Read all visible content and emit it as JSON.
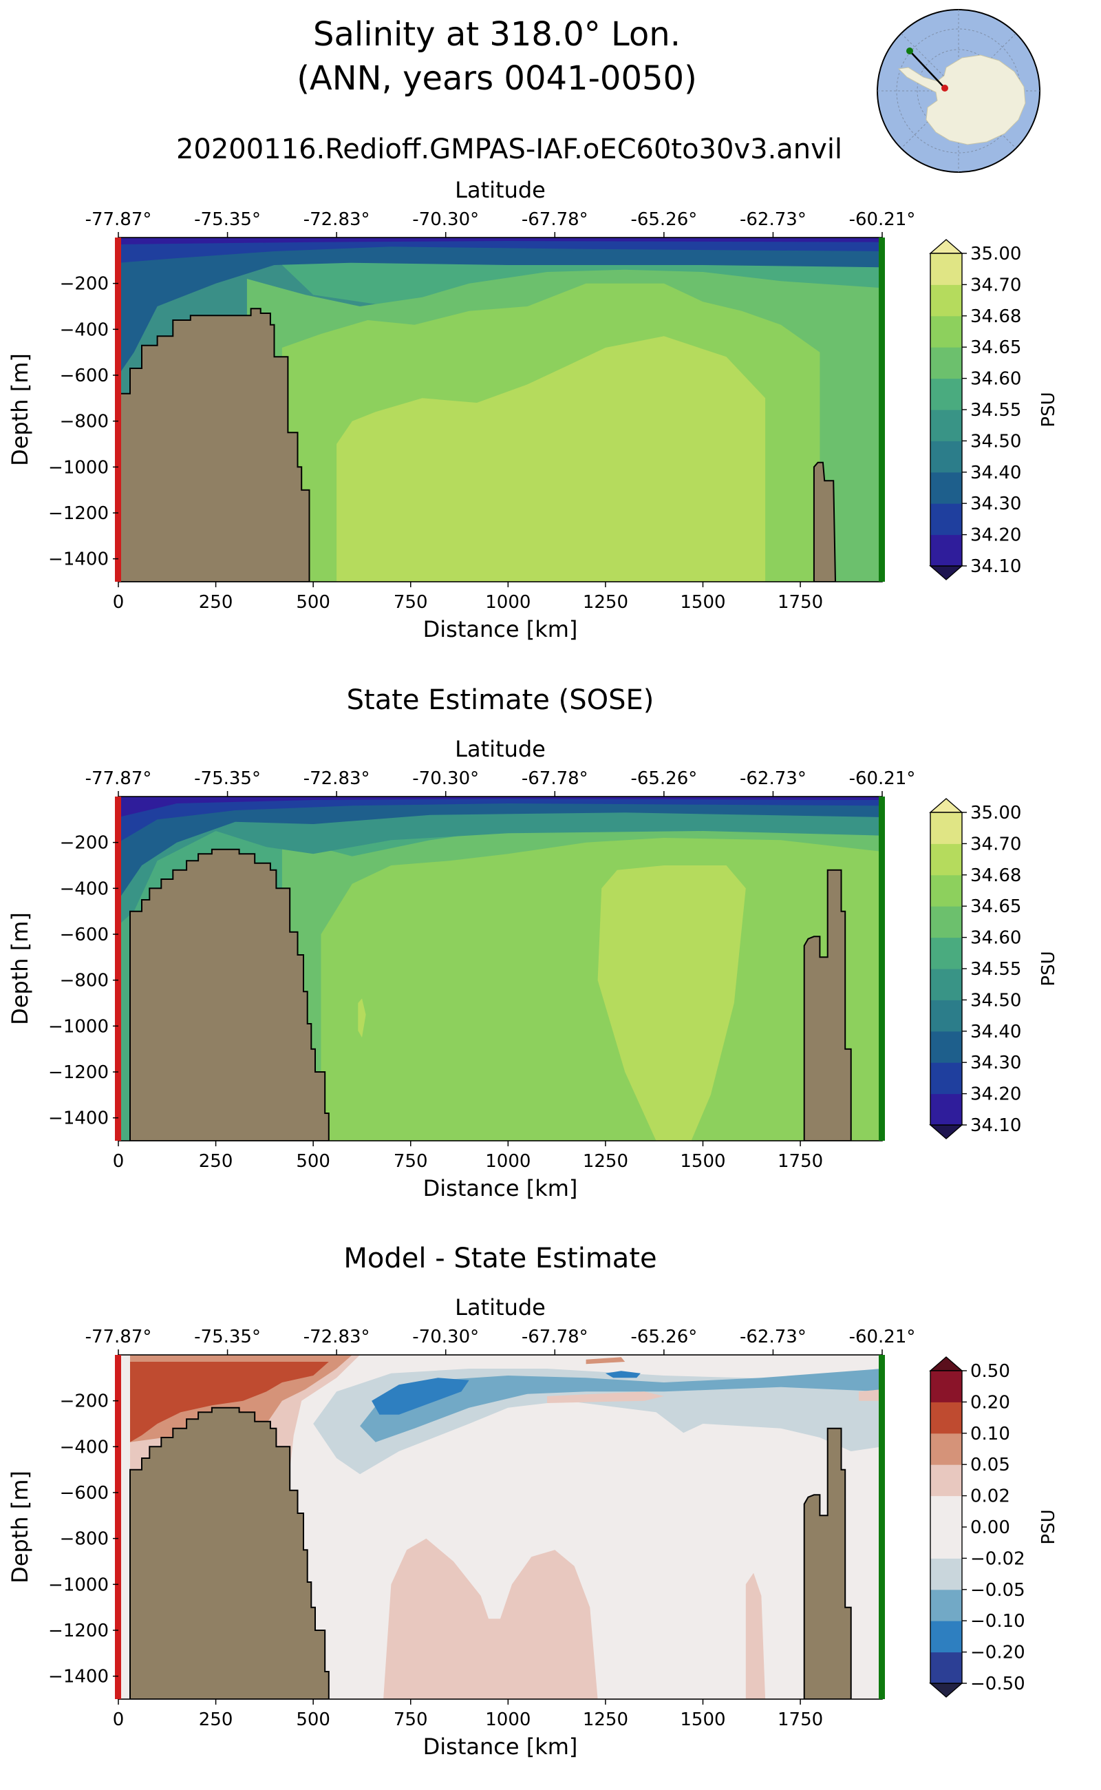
{
  "figure": {
    "title_line1": "Salinity at 318.0° Lon.",
    "title_line2": "(ANN, years 0041-0050)",
    "run_name": "20200116.Redioff.GMPAS-IAF.oEC60to30v3.anvil"
  },
  "chart_data": [
    {
      "type": "heatmap",
      "panel": "model",
      "title": "",
      "xlabel": "Distance [km]",
      "ylabel": "Depth [m]",
      "top_xlabel": "Latitude",
      "xlim": [
        0,
        1960
      ],
      "ylim": [
        -1500,
        0
      ],
      "x_ticks": [
        "0",
        "250",
        "500",
        "750",
        "1000",
        "1250",
        "1500",
        "1750"
      ],
      "y_ticks": [
        "−200",
        "−400",
        "−600",
        "−800",
        "−1000",
        "−1200",
        "−1400"
      ],
      "lat_ticks": [
        "-77.87°",
        "-75.35°",
        "-72.83°",
        "-70.30°",
        "-67.78°",
        "-65.26°",
        "-62.73°",
        "-60.21°"
      ],
      "colorbar": {
        "label": "PSU",
        "ticks": [
          "34.10",
          "34.20",
          "34.30",
          "34.40",
          "34.50",
          "34.55",
          "34.60",
          "34.65",
          "34.68",
          "34.70",
          "35.00"
        ],
        "colors": [
          "#2f1d9b",
          "#1f3f9e",
          "#1e5f8c",
          "#2c7d8a",
          "#399486",
          "#4aab7f",
          "#6cc06d",
          "#8dd05d",
          "#b5db5d",
          "#e0e585"
        ]
      }
    },
    {
      "type": "heatmap",
      "panel": "sose",
      "title": "State Estimate (SOSE)",
      "xlabel": "Distance [km]",
      "ylabel": "Depth [m]",
      "top_xlabel": "Latitude",
      "xlim": [
        0,
        1960
      ],
      "ylim": [
        -1500,
        0
      ],
      "x_ticks": [
        "0",
        "250",
        "500",
        "750",
        "1000",
        "1250",
        "1500",
        "1750"
      ],
      "y_ticks": [
        "−200",
        "−400",
        "−600",
        "−800",
        "−1000",
        "−1200",
        "−1400"
      ],
      "lat_ticks": [
        "-77.87°",
        "-75.35°",
        "-72.83°",
        "-70.30°",
        "-67.78°",
        "-65.26°",
        "-62.73°",
        "-60.21°"
      ],
      "colorbar": {
        "label": "PSU",
        "ticks": [
          "34.10",
          "34.20",
          "34.30",
          "34.40",
          "34.50",
          "34.55",
          "34.60",
          "34.65",
          "34.68",
          "34.70",
          "35.00"
        ],
        "colors": [
          "#2f1d9b",
          "#1f3f9e",
          "#1e5f8c",
          "#2c7d8a",
          "#399486",
          "#4aab7f",
          "#6cc06d",
          "#8dd05d",
          "#b5db5d",
          "#e0e585"
        ]
      }
    },
    {
      "type": "heatmap",
      "panel": "diff",
      "title": "Model - State Estimate",
      "xlabel": "Distance [km]",
      "ylabel": "Depth [m]",
      "top_xlabel": "Latitude",
      "xlim": [
        0,
        1960
      ],
      "ylim": [
        -1500,
        0
      ],
      "x_ticks": [
        "0",
        "250",
        "500",
        "750",
        "1000",
        "1250",
        "1500",
        "1750"
      ],
      "y_ticks": [
        "−200",
        "−400",
        "−600",
        "−800",
        "−1000",
        "−1200",
        "−1400"
      ],
      "lat_ticks": [
        "-77.87°",
        "-75.35°",
        "-72.83°",
        "-70.30°",
        "-67.78°",
        "-65.26°",
        "-62.73°",
        "-60.21°"
      ],
      "colorbar": {
        "label": "PSU",
        "ticks": [
          "−0.50",
          "−0.20",
          "−0.10",
          "−0.05",
          "−0.02",
          "0.00",
          "0.02",
          "0.05",
          "0.10",
          "0.20",
          "0.50"
        ],
        "colors": [
          "#2c3f95",
          "#2e7fc0",
          "#72a9c6",
          "#c9d6dc",
          "#f0eceb",
          "#f0eceb",
          "#e8c8bf",
          "#d59379",
          "#bf4b30",
          "#8a1429"
        ]
      }
    }
  ],
  "colors": {
    "land": "#908064",
    "start_marker": "#d01c1c",
    "end_marker": "#0e7a0e",
    "map_ocean": "#9db9e3",
    "map_land": "#f0eedb"
  },
  "icons": {
    "locator_map": "antarctica-locator-map"
  }
}
